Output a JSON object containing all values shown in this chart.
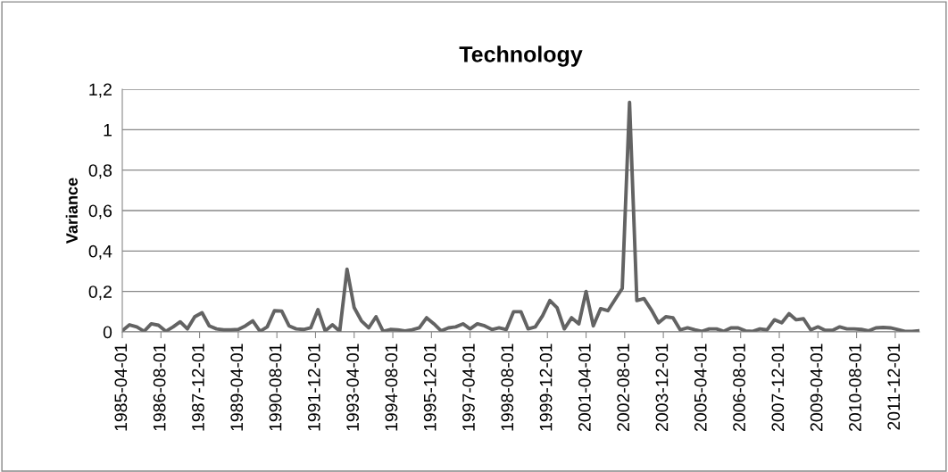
{
  "chart_data": {
    "type": "line",
    "title": "Technology",
    "ylabel": "Variance",
    "x": [
      "1985-04-01",
      "1985-07-01",
      "1985-10-01",
      "1986-01-01",
      "1986-04-01",
      "1986-07-01",
      "1986-10-01",
      "1987-01-01",
      "1987-04-01",
      "1987-07-01",
      "1987-10-01",
      "1988-01-01",
      "1988-04-01",
      "1988-07-01",
      "1988-10-01",
      "1989-01-01",
      "1989-04-01",
      "1989-07-01",
      "1989-10-01",
      "1990-01-01",
      "1990-04-01",
      "1990-07-01",
      "1990-10-01",
      "1991-01-01",
      "1991-04-01",
      "1991-07-01",
      "1991-10-01",
      "1992-01-01",
      "1992-04-01",
      "1992-07-01",
      "1992-10-01",
      "1993-01-01",
      "1993-04-01",
      "1993-07-01",
      "1993-10-01",
      "1994-01-01",
      "1994-04-01",
      "1994-07-01",
      "1994-10-01",
      "1995-01-01",
      "1995-04-01",
      "1995-07-01",
      "1995-10-01",
      "1996-01-01",
      "1996-04-01",
      "1996-07-01",
      "1996-10-01",
      "1997-01-01",
      "1997-04-01",
      "1997-07-01",
      "1997-10-01",
      "1998-01-01",
      "1998-04-01",
      "1998-07-01",
      "1998-10-01",
      "1999-01-01",
      "1999-04-01",
      "1999-07-01",
      "1999-10-01",
      "2000-01-01",
      "2000-04-01",
      "2000-07-01",
      "2000-10-01",
      "2001-01-01",
      "2001-04-01",
      "2001-07-01",
      "2001-10-01",
      "2002-01-01",
      "2002-04-01",
      "2002-07-01",
      "2002-10-01",
      "2003-01-01",
      "2003-04-01",
      "2003-07-01",
      "2003-10-01",
      "2004-01-01",
      "2004-04-01",
      "2004-07-01",
      "2004-10-01",
      "2005-01-01",
      "2005-04-01",
      "2005-07-01",
      "2005-10-01",
      "2006-01-01",
      "2006-04-01",
      "2006-07-01",
      "2006-10-01",
      "2007-01-01",
      "2007-04-01",
      "2007-07-01",
      "2007-10-01",
      "2008-01-01",
      "2008-04-01",
      "2008-07-01",
      "2008-10-01",
      "2009-01-01",
      "2009-04-01",
      "2009-07-01",
      "2009-10-01",
      "2010-01-01",
      "2010-04-01",
      "2010-07-01",
      "2010-10-01",
      "2011-01-01",
      "2011-04-01",
      "2011-07-01",
      "2011-10-01",
      "2012-01-01",
      "2012-04-01",
      "2012-07-01",
      "2012-10-01"
    ],
    "series": [
      {
        "color": "#636363",
        "values": [
          0.006,
          0.035,
          0.025,
          0.003,
          0.04,
          0.033,
          0.003,
          0.025,
          0.05,
          0.015,
          0.075,
          0.095,
          0.03,
          0.015,
          0.01,
          0.01,
          0.012,
          0.03,
          0.055,
          0.003,
          0.025,
          0.105,
          0.103,
          0.03,
          0.015,
          0.012,
          0.02,
          0.11,
          0.005,
          0.035,
          0.003,
          0.31,
          0.12,
          0.055,
          0.02,
          0.075,
          0.003,
          0.012,
          0.01,
          0.005,
          0.01,
          0.02,
          0.07,
          0.04,
          0.005,
          0.02,
          0.025,
          0.04,
          0.015,
          0.04,
          0.03,
          0.012,
          0.02,
          0.012,
          0.1,
          0.1,
          0.015,
          0.025,
          0.08,
          0.155,
          0.12,
          0.015,
          0.07,
          0.04,
          0.2,
          0.03,
          0.115,
          0.105,
          0.16,
          0.215,
          1.135,
          0.155,
          0.165,
          0.11,
          0.045,
          0.075,
          0.07,
          0.01,
          0.02,
          0.01,
          0.003,
          0.015,
          0.015,
          0.003,
          0.02,
          0.02,
          0.005,
          0.003,
          0.015,
          0.01,
          0.06,
          0.045,
          0.09,
          0.06,
          0.065,
          0.01,
          0.025,
          0.008,
          0.008,
          0.025,
          0.015,
          0.015,
          0.012,
          0.005,
          0.02,
          0.022,
          0.02,
          0.012,
          0.003,
          0.003,
          0.006
        ]
      }
    ],
    "xlim": [
      "1985-04-01",
      "2012-10-01"
    ],
    "xticks": [
      "1985-04-01",
      "1986-08-01",
      "1987-12-01",
      "1989-04-01",
      "1990-08-01",
      "1991-12-01",
      "1993-04-01",
      "1994-08-01",
      "1995-12-01",
      "1997-04-01",
      "1998-08-01",
      "1999-12-01",
      "2001-04-01",
      "2002-08-01",
      "2003-12-01",
      "2005-04-01",
      "2006-08-01",
      "2007-12-01",
      "2009-04-01",
      "2010-08-01",
      "2011-12-01"
    ],
    "ylim": [
      0,
      1.2
    ],
    "yticks": [
      0,
      {
        "value": 0.2,
        "label": "0,2"
      },
      {
        "value": 0.4,
        "label": "0,4"
      },
      {
        "value": 0.6,
        "label": "0,6"
      },
      {
        "value": 0.8,
        "label": "0,8"
      },
      1,
      {
        "value": 1.2,
        "label": "1,2"
      }
    ],
    "grid": "y",
    "legend": false,
    "marker": "none",
    "line_style": "solid"
  }
}
